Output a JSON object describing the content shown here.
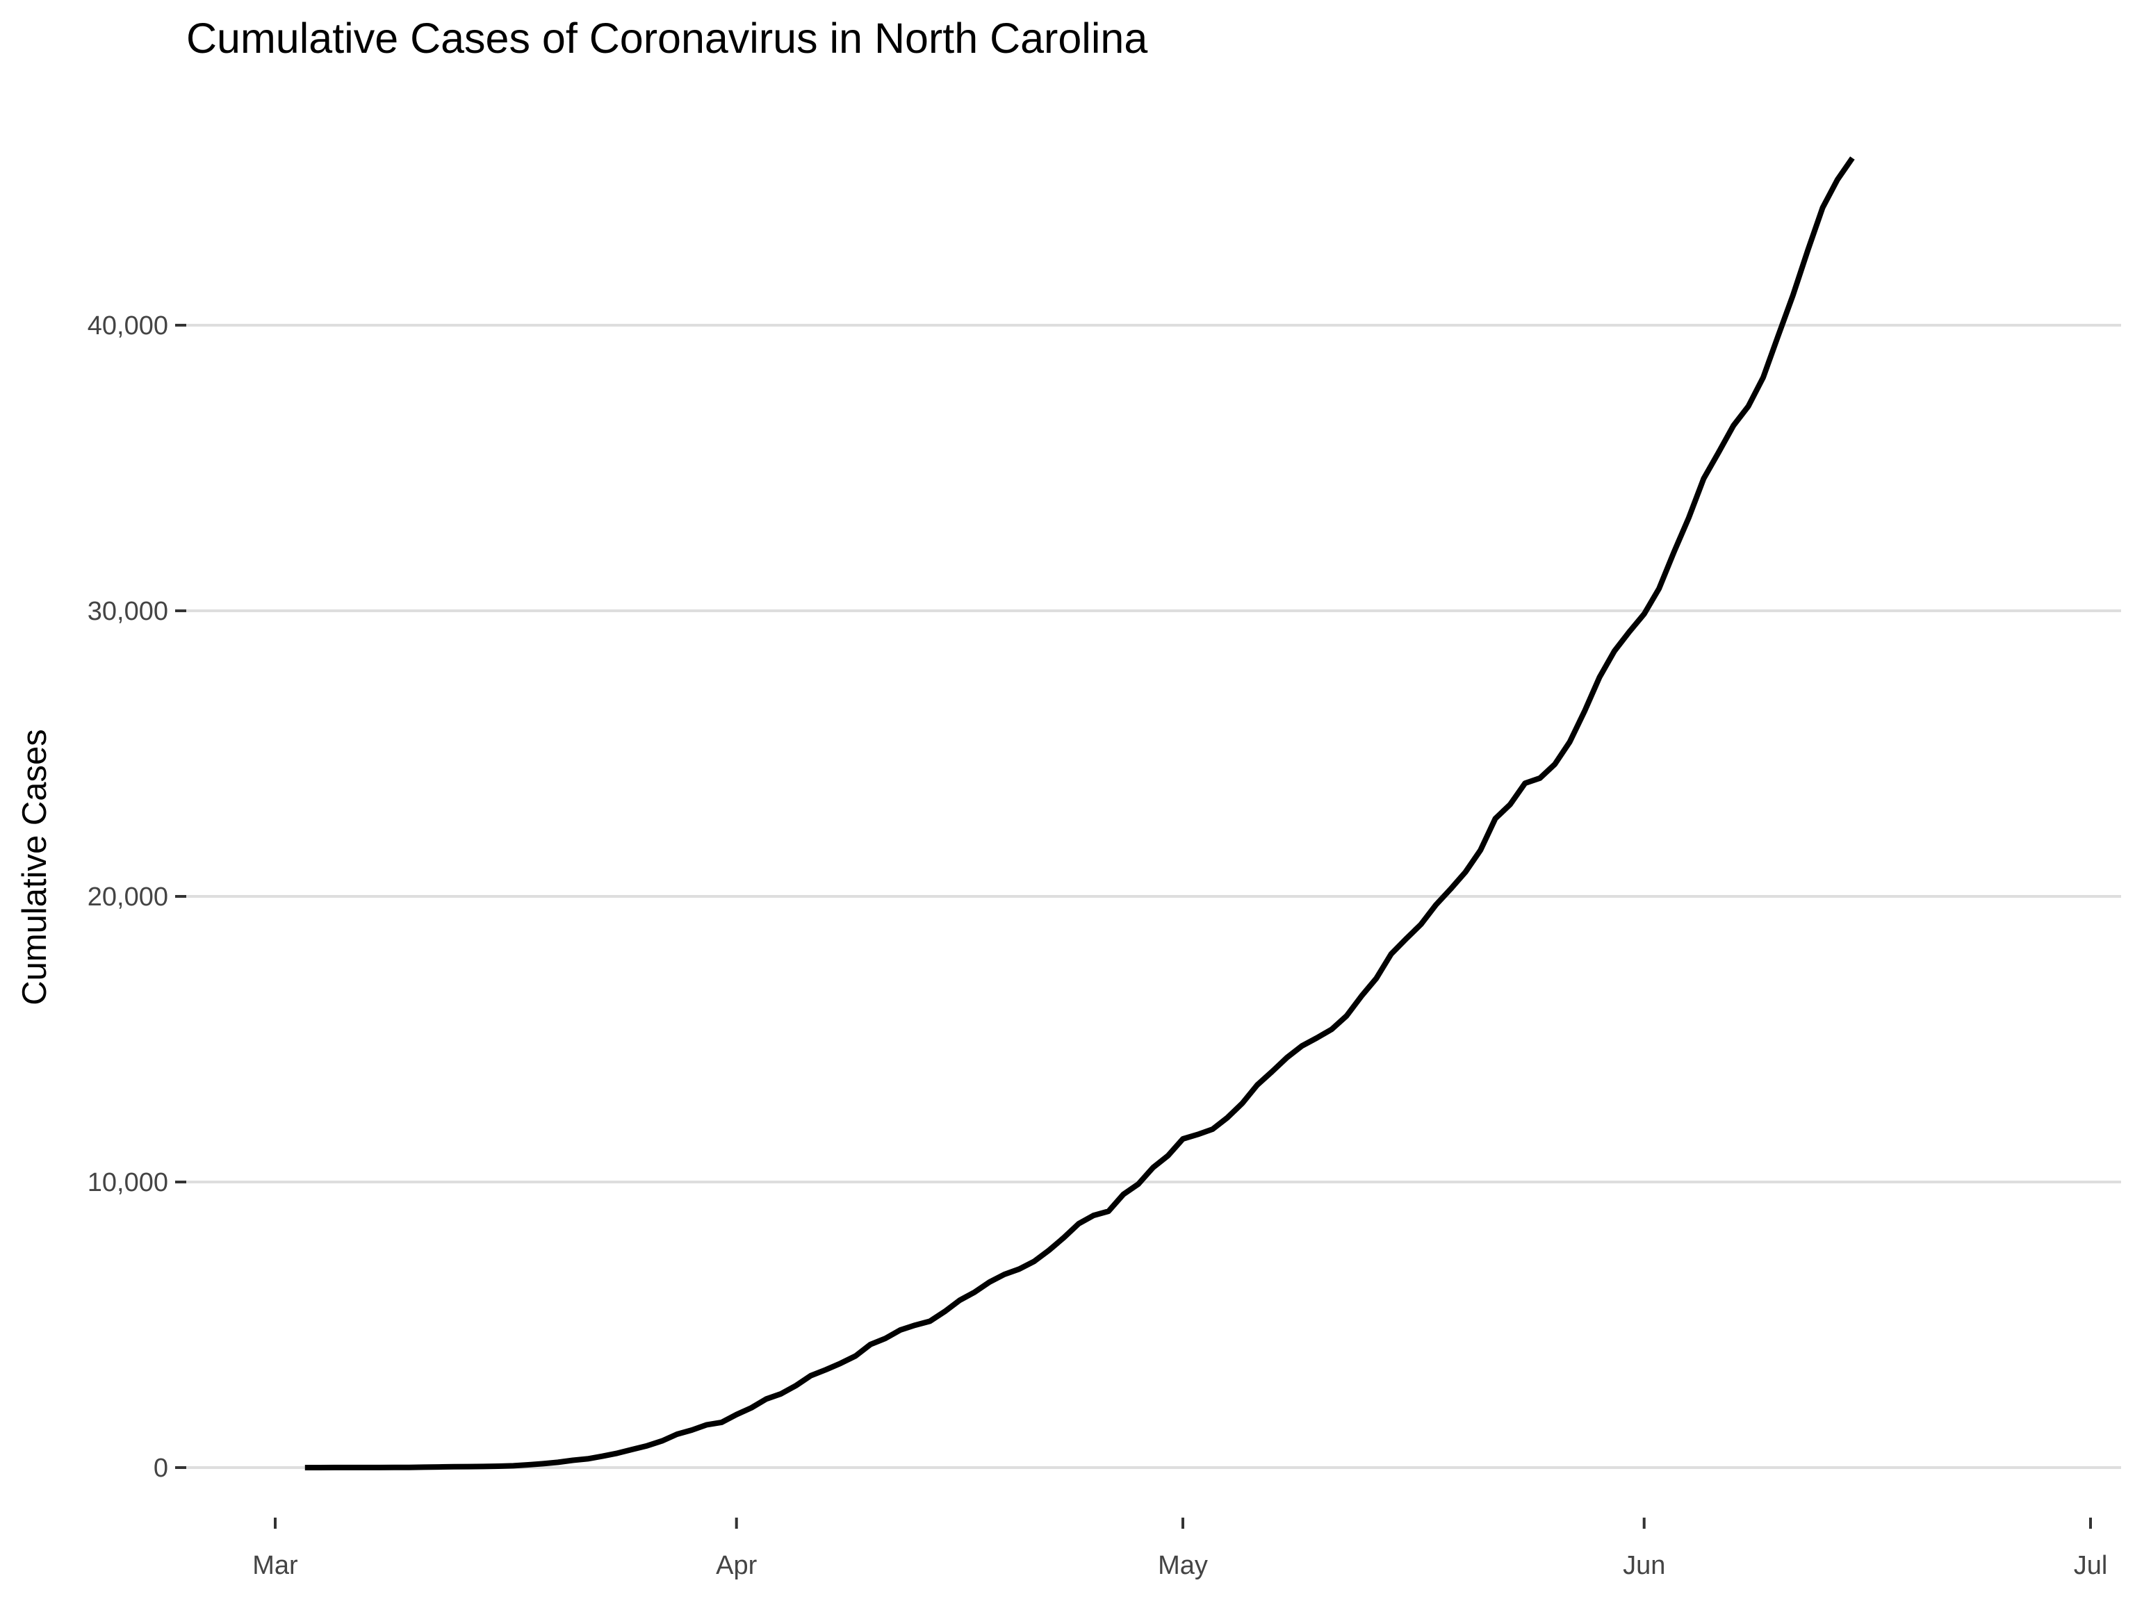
{
  "chart_data": {
    "type": "line",
    "title": "Cumulative Cases of Coronavirus in North Carolina",
    "xlabel": "",
    "ylabel": "Cumulative Cases",
    "x_axis": {
      "type": "date",
      "range": [
        "2020-03-01",
        "2020-07-01"
      ],
      "ticks": [
        {
          "date": "2020-03-01",
          "label": "Mar"
        },
        {
          "date": "2020-04-01",
          "label": "Apr"
        },
        {
          "date": "2020-05-01",
          "label": "May"
        },
        {
          "date": "2020-06-01",
          "label": "Jun"
        },
        {
          "date": "2020-07-01",
          "label": "Jul"
        }
      ]
    },
    "y_axis": {
      "range": [
        0,
        46000
      ],
      "ticks": [
        {
          "value": 0,
          "label": "0"
        },
        {
          "value": 10000,
          "label": "10,000"
        },
        {
          "value": 20000,
          "label": "20,000"
        },
        {
          "value": 30000,
          "label": "30,000"
        },
        {
          "value": 40000,
          "label": "40,000"
        }
      ]
    },
    "grid": true,
    "legend": "none",
    "line_color": "#000000",
    "grid_color": "#dedede",
    "series": [
      {
        "x": [
          "2020-03-03",
          "2020-03-04",
          "2020-03-05",
          "2020-03-06",
          "2020-03-07",
          "2020-03-08",
          "2020-03-09",
          "2020-03-10",
          "2020-03-11",
          "2020-03-12",
          "2020-03-13",
          "2020-03-14",
          "2020-03-15",
          "2020-03-16",
          "2020-03-17",
          "2020-03-18",
          "2020-03-19",
          "2020-03-20",
          "2020-03-21",
          "2020-03-22",
          "2020-03-23",
          "2020-03-24",
          "2020-03-25",
          "2020-03-26",
          "2020-03-27",
          "2020-03-28",
          "2020-03-29",
          "2020-03-30",
          "2020-03-31",
          "2020-04-01",
          "2020-04-02",
          "2020-04-03",
          "2020-04-04",
          "2020-04-05",
          "2020-04-06",
          "2020-04-07",
          "2020-04-08",
          "2020-04-09",
          "2020-04-10",
          "2020-04-11",
          "2020-04-12",
          "2020-04-13",
          "2020-04-14",
          "2020-04-15",
          "2020-04-16",
          "2020-04-17",
          "2020-04-18",
          "2020-04-19",
          "2020-04-20",
          "2020-04-21",
          "2020-04-22",
          "2020-04-23",
          "2020-04-24",
          "2020-04-25",
          "2020-04-26",
          "2020-04-27",
          "2020-04-28",
          "2020-04-29",
          "2020-04-30",
          "2020-05-01",
          "2020-05-02",
          "2020-05-03",
          "2020-05-04",
          "2020-05-05",
          "2020-05-06",
          "2020-05-07",
          "2020-05-08",
          "2020-05-09",
          "2020-05-10",
          "2020-05-11",
          "2020-05-12",
          "2020-05-13",
          "2020-05-14",
          "2020-05-15",
          "2020-05-16",
          "2020-05-17",
          "2020-05-18",
          "2020-05-19",
          "2020-05-20",
          "2020-05-21",
          "2020-05-22",
          "2020-05-23",
          "2020-05-24",
          "2020-05-25",
          "2020-05-26",
          "2020-05-27",
          "2020-05-28",
          "2020-05-29",
          "2020-05-30",
          "2020-05-31",
          "2020-06-01",
          "2020-06-02",
          "2020-06-03",
          "2020-06-04",
          "2020-06-05",
          "2020-06-06",
          "2020-06-07",
          "2020-06-08",
          "2020-06-09",
          "2020-06-10",
          "2020-06-11",
          "2020-06-12",
          "2020-06-13",
          "2020-06-14",
          "2020-06-15"
        ],
        "y": [
          1,
          1,
          2,
          2,
          2,
          2,
          7,
          7,
          15,
          23,
          32,
          34,
          40,
          48,
          64,
          97,
          137,
          184,
          255,
          306,
          398,
          504,
          636,
          763,
          935,
          1167,
          1313,
          1498,
          1584,
          1857,
          2093,
          2402,
          2585,
          2870,
          3221,
          3426,
          3651,
          3908,
          4312,
          4520,
          4816,
          4986,
          5123,
          5465,
          5859,
          6140,
          6493,
          6764,
          6951,
          7220,
          7608,
          8052,
          8541,
          8830,
          8976,
          9568,
          9924,
          10509,
          10923,
          11509,
          11664,
          11848,
          12256,
          12758,
          13397,
          13868,
          14360,
          14764,
          15045,
          15346,
          15816,
          16507,
          17129,
          17982,
          18512,
          19023,
          19700,
          20262,
          20860,
          21618,
          22725,
          23222,
          23964,
          24140,
          24628,
          25412,
          26488,
          27673,
          28589,
          29263,
          29889,
          30777,
          32052,
          33255,
          34625,
          35546,
          36484,
          37160,
          38171,
          39618,
          41047,
          42623,
          44119,
          45102,
          45853
        ]
      }
    ]
  }
}
